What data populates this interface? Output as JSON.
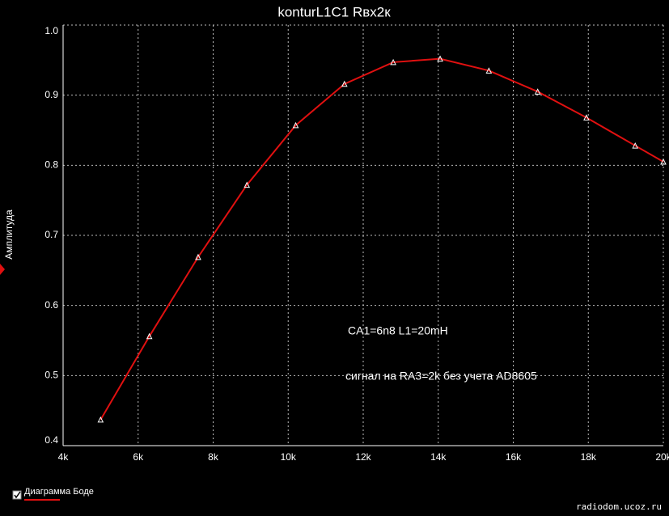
{
  "chart_data": {
    "type": "line",
    "title": "konturL1C1 Rвх2к",
    "ylabel": "Амплитуда",
    "x": [
      5000,
      6300,
      7600,
      8900,
      10200,
      11500,
      12800,
      14050,
      15350,
      16650,
      17950,
      19250,
      20000
    ],
    "series": [
      {
        "name": "Диаграмма Боде",
        "color": "#e01010",
        "values": [
          0.437,
          0.556,
          0.669,
          0.772,
          0.857,
          0.916,
          0.947,
          0.952,
          0.935,
          0.905,
          0.868,
          0.828,
          0.805
        ]
      }
    ],
    "xlim": [
      4000,
      20000
    ],
    "ylim": [
      0.4,
      1.0
    ],
    "xticks": [
      {
        "value": 4000,
        "label": "4k"
      },
      {
        "value": 6000,
        "label": "6k"
      },
      {
        "value": 8000,
        "label": "8k"
      },
      {
        "value": 10000,
        "label": "10k"
      },
      {
        "value": 12000,
        "label": "12k"
      },
      {
        "value": 14000,
        "label": "14k"
      },
      {
        "value": 16000,
        "label": "16k"
      },
      {
        "value": 18000,
        "label": "18k"
      },
      {
        "value": 20000,
        "label": "20k"
      }
    ],
    "yticks": [
      0.4,
      0.5,
      0.6,
      0.7,
      0.8,
      0.9,
      {
        "value": 1,
        "label": "1.0"
      }
    ],
    "grid": true,
    "annotations": [
      "CA1=6n8  L1=20mH",
      "сигнал на RA3=2k без учета AD8605"
    ]
  },
  "watermark": "radiodom.ucoz.ru"
}
